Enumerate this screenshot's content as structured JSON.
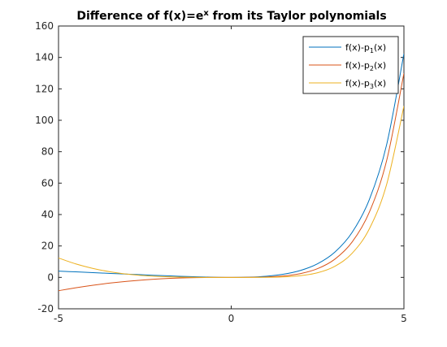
{
  "chart_data": {
    "type": "line",
    "title": {
      "prefix": "Difference of f(x)=e",
      "sup": "x",
      "suffix": " from its Taylor polynomials"
    },
    "xlabel": "",
    "ylabel": "",
    "xlim": [
      -5,
      5
    ],
    "ylim": [
      -20,
      160
    ],
    "x_ticks": [
      -5,
      0,
      5
    ],
    "y_ticks": [
      -20,
      0,
      20,
      40,
      60,
      80,
      100,
      120,
      140,
      160
    ],
    "grid": false,
    "legend_position": "top-right",
    "x": [
      -5,
      -4.5,
      -4,
      -3.5,
      -3,
      -2.5,
      -2,
      -1.5,
      -1,
      -0.5,
      0,
      0.5,
      1,
      1.5,
      2,
      2.5,
      3,
      3.5,
      4,
      4.5,
      5
    ],
    "series": [
      {
        "name_base": "f(x)-p",
        "name_sub": "1",
        "name_tail": "(x)",
        "color": "#0072bd",
        "values": [
          4.007,
          3.511,
          3.018,
          2.53,
          2.05,
          1.582,
          1.135,
          0.723,
          0.368,
          0.107,
          0,
          0.149,
          0.718,
          1.982,
          4.389,
          8.682,
          16.086,
          28.615,
          49.598,
          84.517,
          142.413
        ]
      },
      {
        "name_base": "f(x)-p",
        "name_sub": "2",
        "name_tail": "(x)",
        "color": "#d95319",
        "values": [
          -8.493,
          -6.614,
          -4.982,
          -3.595,
          -2.45,
          -1.543,
          -0.865,
          -0.402,
          -0.132,
          -0.018,
          0,
          0.024,
          0.218,
          0.857,
          2.389,
          5.557,
          11.586,
          22.49,
          41.598,
          74.392,
          129.913
        ]
      },
      {
        "name_base": "f(x)-p",
        "name_sub": "3",
        "name_tail": "(x)",
        "color": "#edb120",
        "values": [
          12.34,
          8.574,
          5.685,
          3.551,
          2.05,
          1.061,
          0.468,
          0.16,
          0.035,
          0.003,
          0,
          0.003,
          0.052,
          0.295,
          1.056,
          2.953,
          7.086,
          15.344,
          30.932,
          59.205,
          109.08
        ]
      }
    ]
  }
}
